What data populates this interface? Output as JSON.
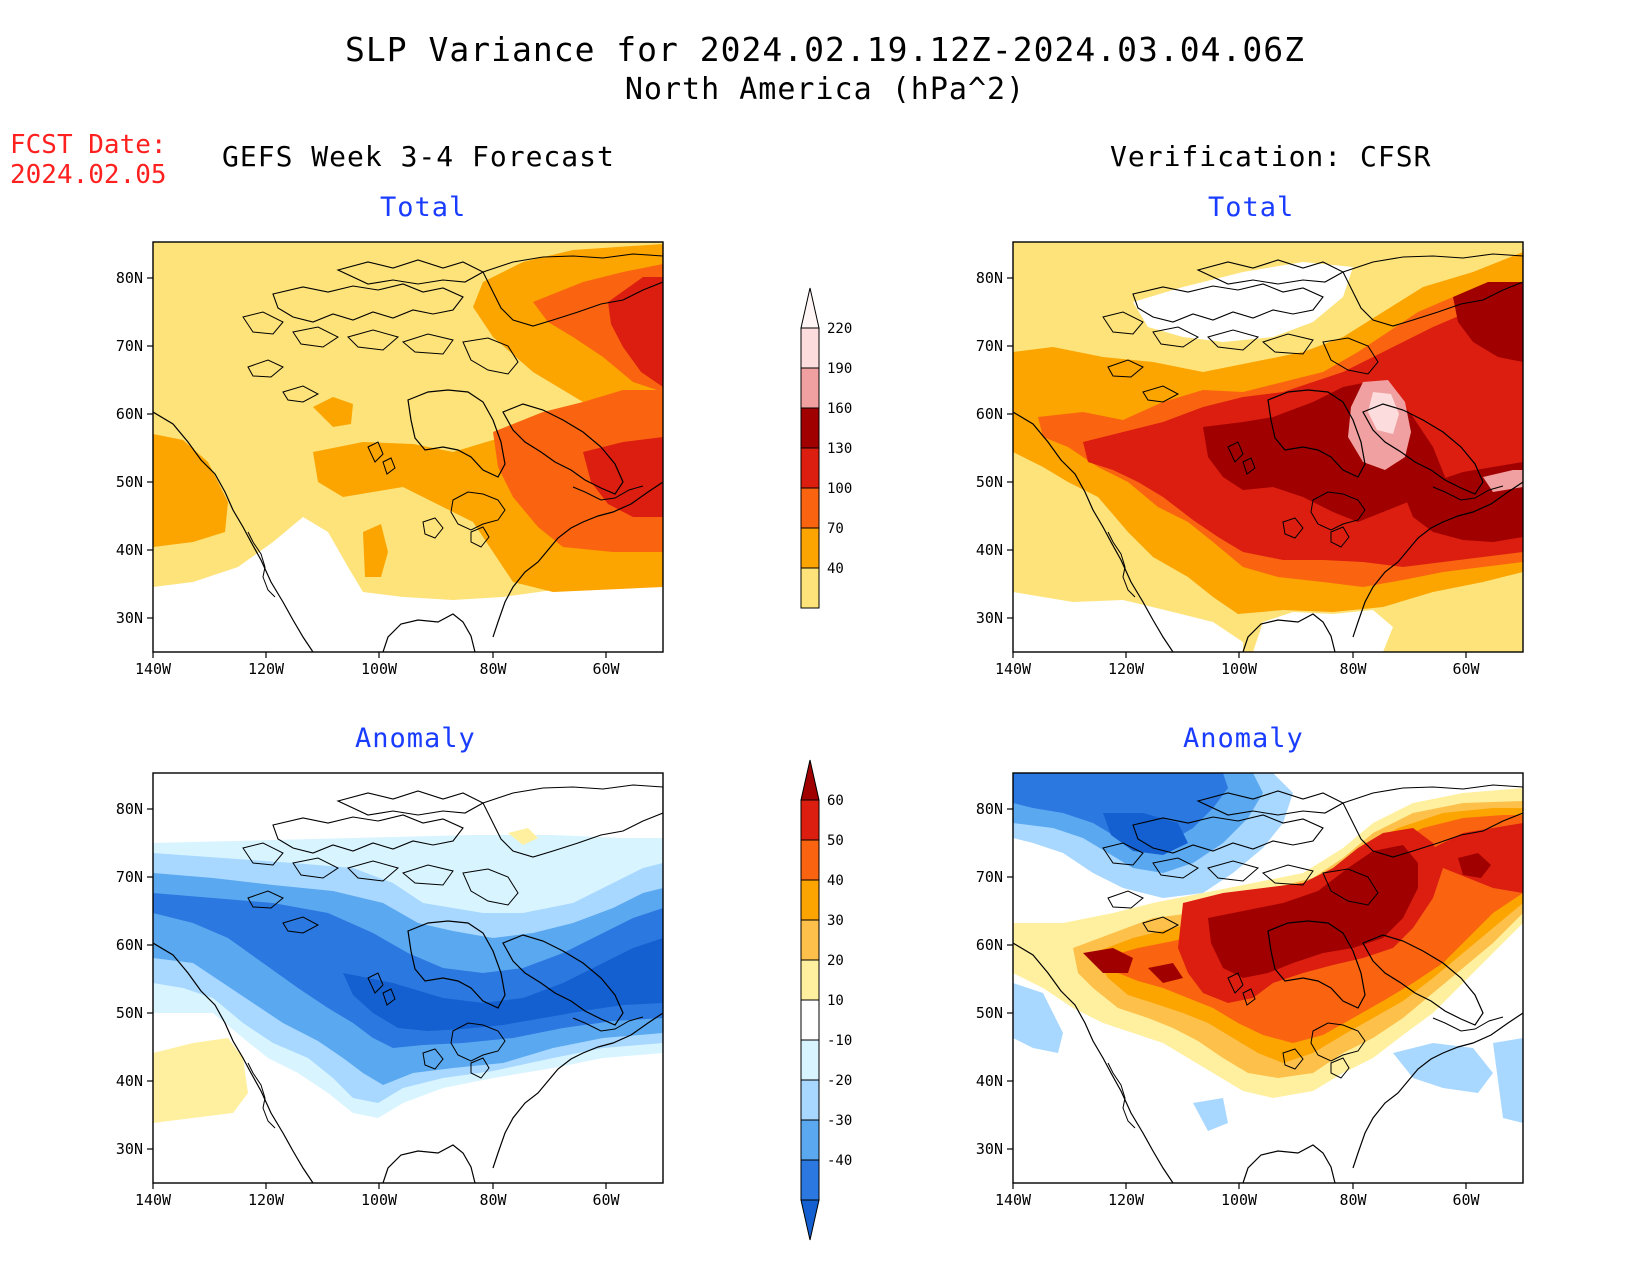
{
  "title": "SLP Variance for 2024.02.19.12Z-2024.03.04.06Z",
  "subtitle": "North America (hPa^2)",
  "fcst_date_label": "FCST Date:",
  "fcst_date": "2024.02.05",
  "left_heading": "GEFS Week 3-4 Forecast",
  "right_heading": "Verification: CFSR",
  "panel_labels": {
    "total": "Total",
    "anomaly": "Anomaly"
  },
  "lat_ticks": [
    "80N",
    "70N",
    "60N",
    "50N",
    "40N",
    "30N"
  ],
  "lon_ticks": [
    "140W",
    "120W",
    "100W",
    "80W",
    "60W"
  ],
  "total_colorbar": {
    "levels": [
      "220",
      "190",
      "160",
      "130",
      "100",
      "70",
      "40"
    ],
    "colors": [
      "#fcdcdc",
      "#f0a0a0",
      "#a00000",
      "#dc1e10",
      "#fa6410",
      "#fca400",
      "#fde37a"
    ]
  },
  "anomaly_colorbar": {
    "levels": [
      "60",
      "50",
      "40",
      "30",
      "20",
      "10",
      "-10",
      "-20",
      "-30",
      "-40"
    ],
    "colors": [
      "#a00000",
      "#dc1e10",
      "#fa6410",
      "#fca400",
      "#fdc04a",
      "#fff0a0",
      "#ffffff",
      "#d8f4ff",
      "#a8d8ff",
      "#5aa8f0",
      "#2a78e0",
      "#1460d0"
    ]
  }
}
